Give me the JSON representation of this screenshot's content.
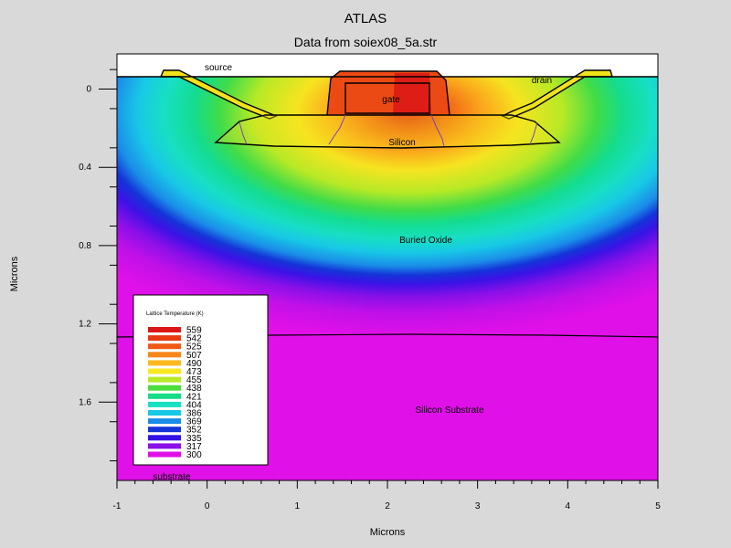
{
  "title": "ATLAS",
  "subtitle": "Data from soiex08_5a.str",
  "chart_data": {
    "type": "heatmap",
    "title": "ATLAS",
    "subtitle": "Data from soiex08_5a.str",
    "xlabel": "Microns",
    "ylabel": "Microns",
    "xlim": [
      -1,
      5
    ],
    "ylim": [
      -0.18,
      2.0
    ],
    "y_axis_inverted": true,
    "x_ticks": [
      "-1",
      "0",
      "1",
      "2",
      "3",
      "4",
      "5"
    ],
    "y_ticks": [
      "0",
      "0.4",
      "0.8",
      "1.2",
      "1.6"
    ],
    "regions": [
      {
        "name": "source",
        "x": -0.05,
        "y": -0.24
      },
      {
        "name": "drain",
        "x": 3.68,
        "y": -0.17
      },
      {
        "name": "gate",
        "x": 2.03,
        "y": -0.06
      },
      {
        "name": "Silicon",
        "x": 2.16,
        "y": 0.17
      },
      {
        "name": "Buried Oxide",
        "x": 2.4,
        "y": 0.7
      },
      {
        "name": "Silicon Substrate",
        "x": 2.95,
        "y": 1.62
      },
      {
        "name": "substrate",
        "x": -0.62,
        "y": 1.98
      }
    ],
    "legend": {
      "title": "Lattice Temperature (K)",
      "placement": "bottom-left",
      "levels": [
        {
          "value": "559",
          "color": "#dc1616"
        },
        {
          "value": "542",
          "color": "#e83a10"
        },
        {
          "value": "525",
          "color": "#f05a14"
        },
        {
          "value": "507",
          "color": "#f7861a"
        },
        {
          "value": "490",
          "color": "#fbb91e"
        },
        {
          "value": "473",
          "color": "#f8e81f"
        },
        {
          "value": "455",
          "color": "#b8ea26"
        },
        {
          "value": "438",
          "color": "#4ddc3c"
        },
        {
          "value": "421",
          "color": "#14dc88"
        },
        {
          "value": "404",
          "color": "#18e0c2"
        },
        {
          "value": "386",
          "color": "#18c9e6"
        },
        {
          "value": "369",
          "color": "#1a8ce8"
        },
        {
          "value": "352",
          "color": "#1434d8"
        },
        {
          "value": "335",
          "color": "#3212e6"
        },
        {
          "value": "317",
          "color": "#8a10e8"
        },
        {
          "value": "300",
          "color": "#e010e8"
        }
      ]
    },
    "background": "#d9d9d9",
    "grid": false
  }
}
